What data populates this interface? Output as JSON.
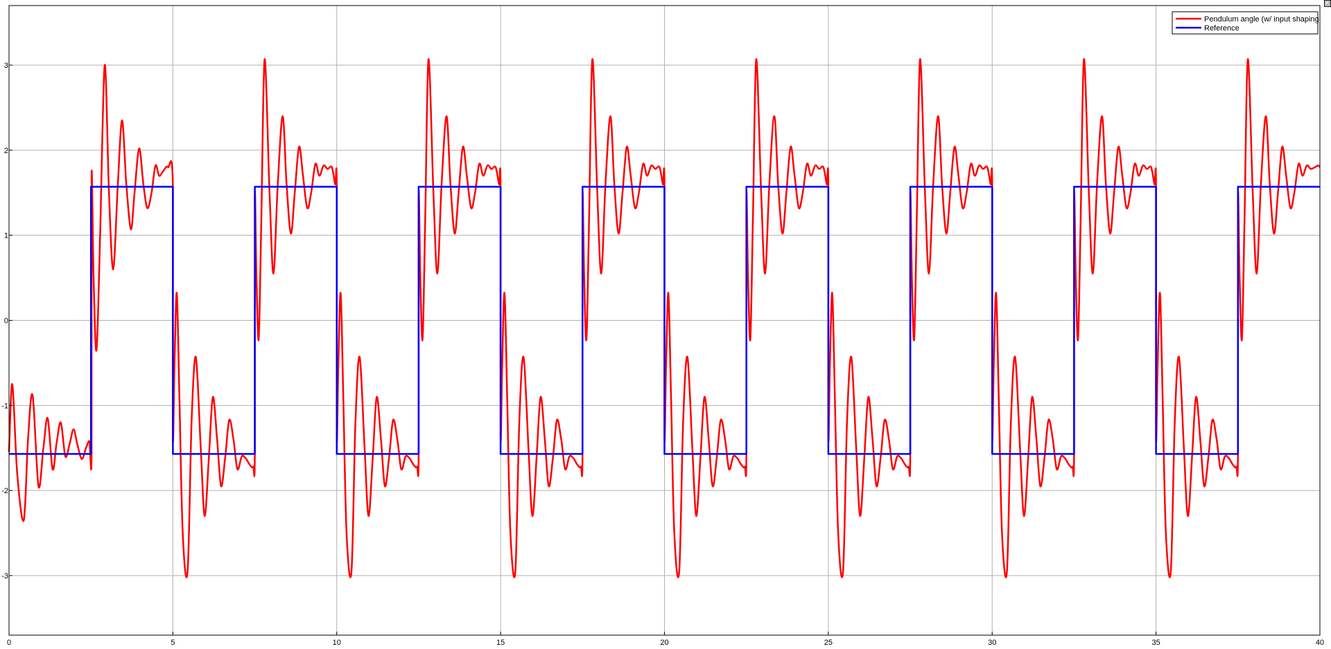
{
  "toolbar": {
    "corner_glyph": "◲"
  },
  "chart_data": {
    "type": "line",
    "title": "",
    "xlabel": "",
    "ylabel": "",
    "xlim": [
      0,
      40
    ],
    "ylim": [
      -3.7,
      3.7
    ],
    "xticks": [
      0,
      5,
      10,
      15,
      20,
      25,
      30,
      35,
      40
    ],
    "yticks": [
      -3,
      -2,
      -1,
      0,
      1,
      2,
      3
    ],
    "grid": true,
    "legend_position": "top-right",
    "colors": {
      "pendulum": "#ff0000",
      "reference": "#0000ff",
      "grid": "#b0b0b0",
      "axes": "#000000"
    },
    "series": [
      {
        "name": "Pendulum angle (w/ input shaping",
        "color": "#ff0000",
        "x": [
          0,
          0.1,
          0.25,
          0.45,
          0.58,
          0.72,
          0.9,
          1.05,
          1.18,
          1.33,
          1.45,
          1.58,
          1.72,
          1.85,
          1.97,
          2.08,
          2.22,
          2.35,
          2.45,
          2.52,
          2.52,
          2.58,
          2.67,
          2.78,
          2.92,
          3.05,
          3.18,
          3.32,
          3.45,
          3.58,
          3.72,
          3.83,
          3.97,
          4.1,
          4.22,
          4.35,
          4.47,
          4.58,
          4.7,
          4.85,
          5.0,
          5.0,
          5.05,
          5.12,
          5.2,
          5.3,
          5.45,
          5.57,
          5.7,
          5.85,
          5.97,
          6.1,
          6.22,
          6.35,
          6.47,
          6.6,
          6.72,
          6.85,
          6.97,
          7.1,
          7.22,
          7.35,
          7.45,
          7.5,
          7.5,
          7.55,
          7.62,
          7.7,
          7.8,
          7.95,
          8.07,
          8.2,
          8.35,
          8.47,
          8.6,
          8.72,
          8.85,
          8.97,
          9.1,
          9.22,
          9.35,
          9.47,
          9.6,
          9.72,
          9.85,
          9.95,
          10.0,
          10.0,
          10.05,
          10.12,
          10.2,
          10.3,
          10.45,
          10.57,
          10.7,
          10.85,
          10.97,
          11.1,
          11.22,
          11.35,
          11.47,
          11.6,
          11.72,
          11.85,
          11.97,
          12.1,
          12.22,
          12.35,
          12.45,
          12.5,
          12.5,
          12.55,
          12.62,
          12.7,
          12.8,
          12.95,
          13.07,
          13.2,
          13.35,
          13.47,
          13.6,
          13.72,
          13.85,
          13.97,
          14.1,
          14.22,
          14.35,
          14.47,
          14.6,
          14.72,
          14.85,
          14.95,
          15.0,
          15.0,
          15.05,
          15.12,
          15.2,
          15.3,
          15.45,
          15.57,
          15.7,
          15.85,
          15.97,
          16.1,
          16.22,
          16.35,
          16.47,
          16.6,
          16.72,
          16.85,
          16.97,
          17.1,
          17.22,
          17.35,
          17.45,
          17.5,
          17.5,
          17.55,
          17.62,
          17.7,
          17.8,
          17.95,
          18.07,
          18.2,
          18.35,
          18.47,
          18.6,
          18.72,
          18.85,
          18.97,
          19.1,
          19.22,
          19.35,
          19.47,
          19.6,
          19.72,
          19.85,
          19.95,
          20.0,
          20.0,
          20.05,
          20.12,
          20.2,
          20.3,
          20.45,
          20.57,
          20.7,
          20.85,
          20.97,
          21.1,
          21.22,
          21.35,
          21.47,
          21.6,
          21.72,
          21.85,
          21.97,
          22.1,
          22.22,
          22.35,
          22.45,
          22.5,
          22.5,
          22.55,
          22.62,
          22.7,
          22.8,
          22.95,
          23.07,
          23.2,
          23.35,
          23.47,
          23.6,
          23.72,
          23.85,
          23.97,
          24.1,
          24.22,
          24.35,
          24.47,
          24.6,
          24.72,
          24.85,
          24.95,
          25.0,
          25.0,
          25.05,
          25.12,
          25.2,
          25.3,
          25.45,
          25.57,
          25.7,
          25.85,
          25.97,
          26.1,
          26.22,
          26.35,
          26.47,
          26.6,
          26.72,
          26.85,
          26.97,
          27.1,
          27.22,
          27.35,
          27.45,
          27.5,
          27.5,
          27.55,
          27.62,
          27.7,
          27.8,
          27.95,
          28.07,
          28.2,
          28.35,
          28.47,
          28.6,
          28.72,
          28.85,
          28.97,
          29.1,
          29.22,
          29.35,
          29.47,
          29.6,
          29.72,
          29.85,
          29.95,
          30.0,
          30.0,
          30.05,
          30.12,
          30.2,
          30.3,
          30.45,
          30.57,
          30.7,
          30.85,
          30.97,
          31.1,
          31.22,
          31.35,
          31.47,
          31.6,
          31.72,
          31.85,
          31.97,
          32.1,
          32.22,
          32.35,
          32.45,
          32.5,
          32.5,
          32.55,
          32.62,
          32.7,
          32.8,
          32.95,
          33.07,
          33.2,
          33.35,
          33.47,
          33.6,
          33.72,
          33.85,
          33.97,
          34.1,
          34.22,
          34.35,
          34.47,
          34.6,
          34.72,
          34.85,
          34.95,
          35.0,
          35.0,
          35.05,
          35.12,
          35.2,
          35.3,
          35.45,
          35.57,
          35.7,
          35.85,
          35.97,
          36.1,
          36.22,
          36.35,
          36.47,
          36.6,
          36.72,
          36.85,
          36.97,
          37.1,
          37.22,
          37.35,
          37.45,
          37.5,
          37.5,
          37.55,
          37.62,
          37.7,
          37.8,
          37.95,
          38.07,
          38.2,
          38.35,
          38.47,
          38.6,
          38.72,
          38.85,
          38.97,
          39.1,
          39.22,
          39.35,
          39.47,
          39.6,
          39.72,
          39.85,
          39.95,
          40.0
        ],
        "y": [
          -1.55,
          -0.75,
          -1.8,
          -2.35,
          -1.4,
          -0.88,
          -1.95,
          -1.5,
          -1.15,
          -1.75,
          -1.45,
          -1.2,
          -1.6,
          -1.45,
          -1.28,
          -1.45,
          -1.63,
          -1.5,
          -1.42,
          -1.55,
          1.7,
          0.5,
          -0.35,
          1.0,
          3.0,
          1.5,
          0.6,
          1.6,
          2.35,
          1.6,
          1.07,
          1.5,
          2.02,
          1.6,
          1.32,
          1.5,
          1.82,
          1.7,
          1.75,
          1.8,
          1.57,
          -1.35,
          -0.5,
          0.32,
          -0.9,
          -2.5,
          -2.95,
          -1.2,
          -0.43,
          -1.5,
          -2.3,
          -1.6,
          -0.9,
          -1.4,
          -1.95,
          -1.6,
          -1.17,
          -1.4,
          -1.75,
          -1.6,
          -1.62,
          -1.7,
          -1.72,
          -1.55,
          1.45,
          0.5,
          -0.22,
          1.2,
          3.07,
          1.5,
          0.55,
          1.6,
          2.4,
          1.6,
          1.02,
          1.5,
          2.04,
          1.7,
          1.32,
          1.5,
          1.84,
          1.7,
          1.82,
          1.78,
          1.8,
          1.6,
          1.57,
          -1.35,
          -0.5,
          0.32,
          -0.9,
          -2.5,
          -2.95,
          -1.2,
          -0.43,
          -1.5,
          -2.3,
          -1.6,
          -0.9,
          -1.4,
          -1.95,
          -1.6,
          -1.17,
          -1.4,
          -1.75,
          -1.6,
          -1.62,
          -1.7,
          -1.72,
          -1.55,
          1.45,
          0.5,
          -0.22,
          1.2,
          3.07,
          1.5,
          0.55,
          1.6,
          2.4,
          1.6,
          1.02,
          1.5,
          2.04,
          1.7,
          1.32,
          1.5,
          1.84,
          1.7,
          1.82,
          1.78,
          1.8,
          1.6,
          1.57,
          -1.35,
          -0.5,
          0.32,
          -0.9,
          -2.5,
          -2.95,
          -1.2,
          -0.43,
          -1.5,
          -2.3,
          -1.6,
          -0.9,
          -1.4,
          -1.95,
          -1.6,
          -1.17,
          -1.4,
          -1.75,
          -1.6,
          -1.62,
          -1.7,
          -1.72,
          -1.55,
          1.45,
          0.5,
          -0.22,
          1.2,
          3.07,
          1.5,
          0.55,
          1.6,
          2.4,
          1.6,
          1.02,
          1.5,
          2.04,
          1.7,
          1.32,
          1.5,
          1.84,
          1.7,
          1.82,
          1.78,
          1.8,
          1.6,
          1.57,
          -1.35,
          -0.5,
          0.32,
          -0.9,
          -2.5,
          -2.95,
          -1.2,
          -0.43,
          -1.5,
          -2.3,
          -1.6,
          -0.9,
          -1.4,
          -1.95,
          -1.6,
          -1.17,
          -1.4,
          -1.75,
          -1.6,
          -1.62,
          -1.7,
          -1.72,
          -1.55,
          1.45,
          0.5,
          -0.22,
          1.2,
          3.07,
          1.5,
          0.55,
          1.6,
          2.4,
          1.6,
          1.02,
          1.5,
          2.04,
          1.7,
          1.32,
          1.5,
          1.84,
          1.7,
          1.82,
          1.78,
          1.8,
          1.6,
          1.57,
          -1.35,
          -0.5,
          0.32,
          -0.9,
          -2.5,
          -2.95,
          -1.2,
          -0.43,
          -1.5,
          -2.3,
          -1.6,
          -0.9,
          -1.4,
          -1.95,
          -1.6,
          -1.17,
          -1.4,
          -1.75,
          -1.6,
          -1.62,
          -1.7,
          -1.72,
          -1.55,
          1.45,
          0.5,
          -0.22,
          1.2,
          3.07,
          1.5,
          0.55,
          1.6,
          2.4,
          1.6,
          1.02,
          1.5,
          2.04,
          1.7,
          1.32,
          1.5,
          1.84,
          1.7,
          1.82,
          1.78,
          1.8,
          1.6,
          1.57,
          -1.35,
          -0.5,
          0.32,
          -0.9,
          -2.5,
          -2.95,
          -1.2,
          -0.43,
          -1.5,
          -2.3,
          -1.6,
          -0.9,
          -1.4,
          -1.95,
          -1.6,
          -1.17,
          -1.4,
          -1.75,
          -1.6,
          -1.62,
          -1.7,
          -1.72,
          -1.55,
          1.45,
          0.5,
          -0.22,
          1.2,
          3.07,
          1.5,
          0.55,
          1.6,
          2.4,
          1.6,
          1.02,
          1.5,
          2.04,
          1.7,
          1.32,
          1.5,
          1.84,
          1.7,
          1.82,
          1.78,
          1.8,
          1.6,
          1.57,
          -1.35,
          -0.5,
          0.32,
          -0.9,
          -2.5,
          -2.95,
          -1.2,
          -0.43,
          -1.5,
          -2.3,
          -1.6,
          -0.9,
          -1.4,
          -1.95,
          -1.6,
          -1.17,
          -1.4,
          -1.75,
          -1.6,
          -1.62,
          -1.7,
          -1.72,
          -1.55,
          1.45,
          0.5,
          -0.22,
          1.2,
          3.07,
          1.5,
          0.55,
          1.6,
          2.4,
          1.6,
          1.02,
          1.5,
          2.04,
          1.7,
          1.32,
          1.5,
          1.84,
          1.7,
          1.82,
          1.78,
          1.8,
          1.82,
          1.8
        ]
      },
      {
        "name": "Reference",
        "color": "#0000ff",
        "x": [
          0,
          2.5,
          2.5,
          5,
          5,
          7.5,
          7.5,
          10,
          10,
          12.5,
          12.5,
          15,
          15,
          17.5,
          17.5,
          20,
          20,
          22.5,
          22.5,
          25,
          25,
          27.5,
          27.5,
          30,
          30,
          32.5,
          32.5,
          35,
          35,
          37.5,
          37.5,
          40
        ],
        "y": [
          -1.57,
          -1.57,
          1.57,
          1.57,
          -1.57,
          -1.57,
          1.57,
          1.57,
          -1.57,
          -1.57,
          1.57,
          1.57,
          -1.57,
          -1.57,
          1.57,
          1.57,
          -1.57,
          -1.57,
          1.57,
          1.57,
          -1.57,
          -1.57,
          1.57,
          1.57,
          -1.57,
          -1.57,
          1.57,
          1.57,
          -1.57,
          -1.57,
          1.57,
          1.57
        ]
      }
    ]
  }
}
